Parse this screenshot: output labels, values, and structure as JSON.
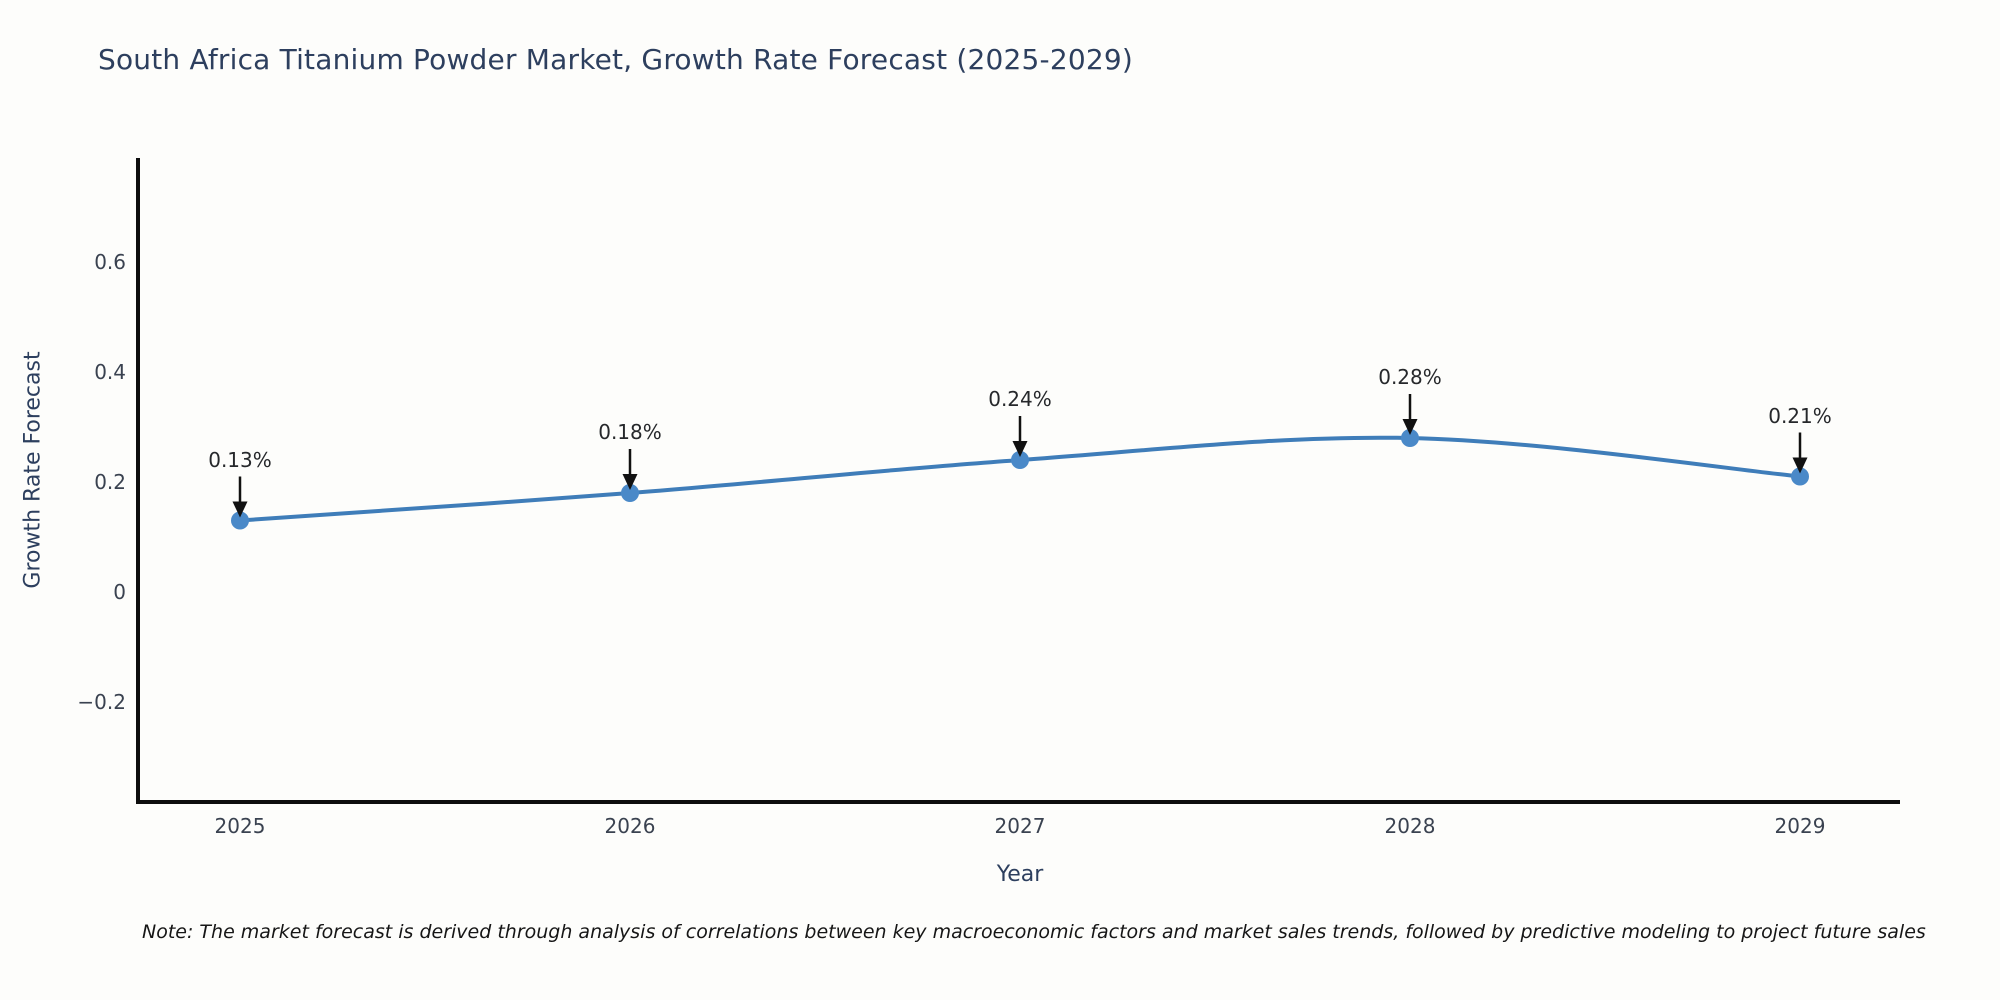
{
  "page": {
    "background": "#fdfdfb"
  },
  "chart_data": {
    "type": "line",
    "title": "South Africa Titanium Powder Market, Growth Rate Forecast (2025-2029)",
    "xlabel": "Year",
    "ylabel": "Growth Rate Forecast",
    "x": [
      2025,
      2026,
      2027,
      2028,
      2029
    ],
    "values": [
      0.13,
      0.18,
      0.24,
      0.28,
      0.21
    ],
    "point_labels": [
      "0.13%",
      "0.18%",
      "0.24%",
      "0.28%",
      "0.21%"
    ],
    "xtick_labels": [
      "2025",
      "2026",
      "2027",
      "2028",
      "2029"
    ],
    "yticks": {
      "values": [
        0.6,
        0.4,
        0.2,
        0,
        -0.2
      ],
      "labels": [
        "0.6",
        "0.4",
        "0.2",
        "0",
        "−0.2"
      ]
    },
    "ylim": [
      -0.38,
      0.78
    ],
    "grid": false,
    "legend": null,
    "smooth_line": true,
    "annotations_have_arrows": true,
    "colors": {
      "line": "#3f7db9",
      "marker": "#4a89c8",
      "arrow": "#111111",
      "spine": "#0d0d0d",
      "title_text": "#2d3f5e",
      "axis_title_text": "#2d3f5e",
      "tick_text": "#3a4250",
      "point_label_text": "#26282b",
      "note_text": "#161616"
    }
  },
  "note": {
    "text": "Note: The market forecast is derived through analysis of correlations between key macroeconomic factors and market sales trends, followed by predictive modeling to project future sales"
  }
}
